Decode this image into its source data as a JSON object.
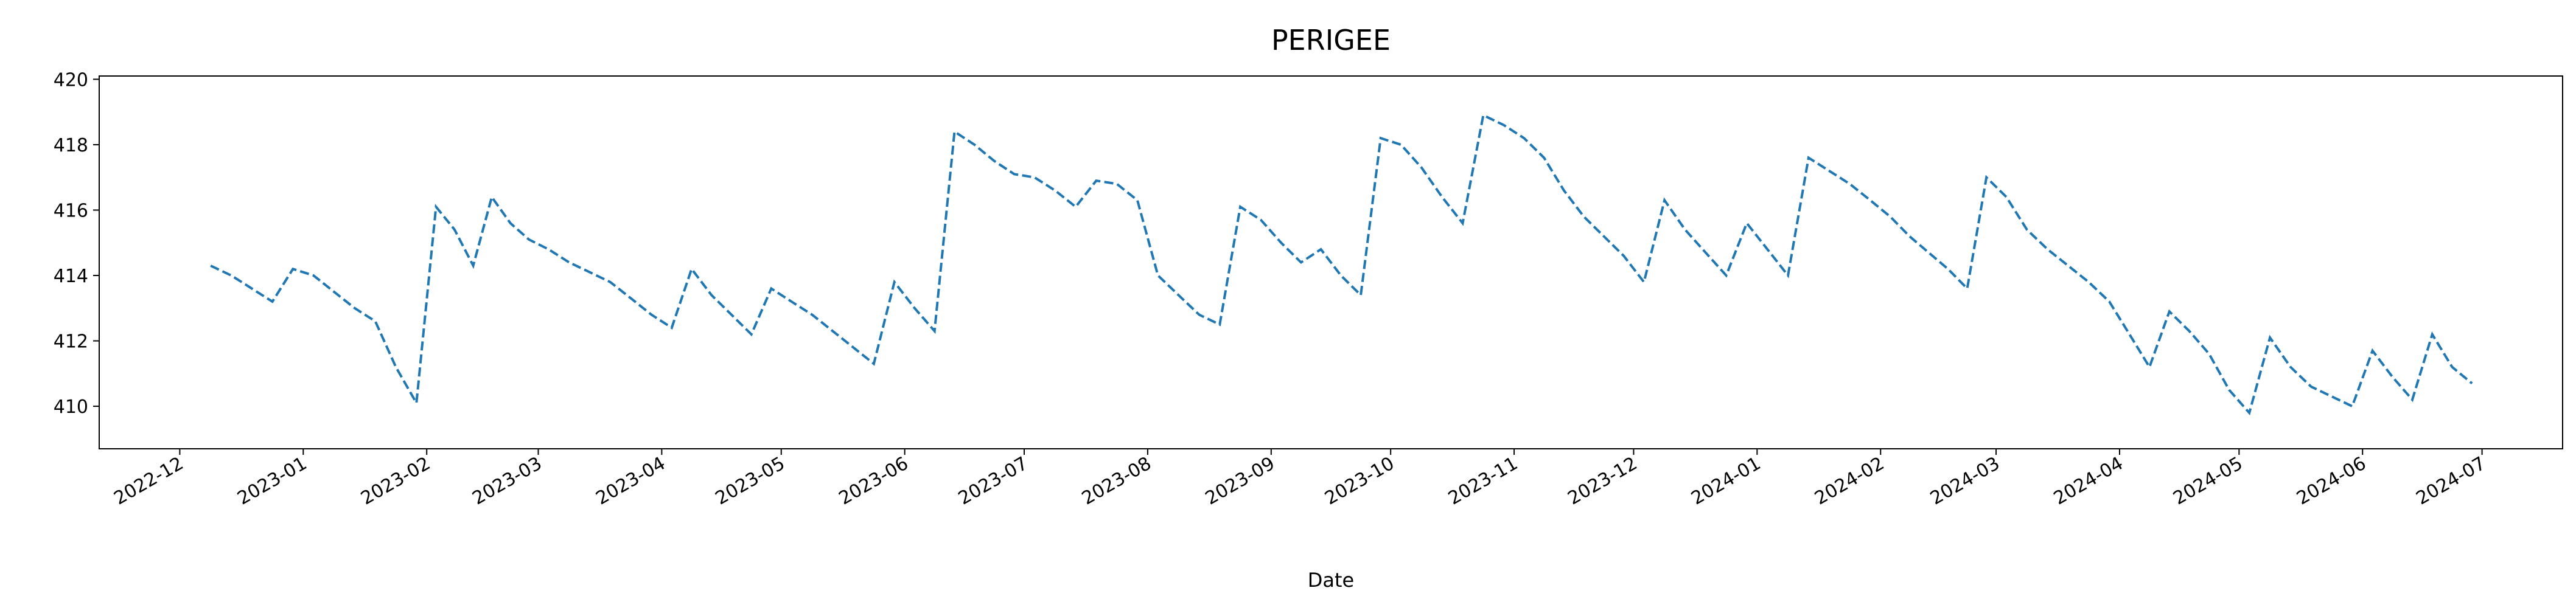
{
  "chart_data": {
    "type": "line",
    "title": "PERIGEE",
    "xlabel": "Date",
    "x": [
      "2022-12",
      "2022-12",
      "2022-12",
      "2022-12",
      "2022-12",
      "2022-12",
      "2023-01",
      "2023-01",
      "2023-01",
      "2023-01",
      "2023-01",
      "2023-01",
      "2023-02",
      "2023-02",
      "2023-02",
      "2023-02",
      "2023-02",
      "2023-02",
      "2023-03",
      "2023-03",
      "2023-03",
      "2023-03",
      "2023-03",
      "2023-03",
      "2023-04",
      "2023-04",
      "2023-04",
      "2023-04",
      "2023-04",
      "2023-04",
      "2023-05",
      "2023-05",
      "2023-05",
      "2023-05",
      "2023-05",
      "2023-05",
      "2023-06",
      "2023-06",
      "2023-06",
      "2023-06",
      "2023-06",
      "2023-06",
      "2023-07",
      "2023-07",
      "2023-07",
      "2023-07",
      "2023-07",
      "2023-07",
      "2023-08",
      "2023-08",
      "2023-08",
      "2023-08",
      "2023-08",
      "2023-08",
      "2023-09",
      "2023-09",
      "2023-09",
      "2023-09",
      "2023-09",
      "2023-09",
      "2023-10",
      "2023-10",
      "2023-10",
      "2023-10",
      "2023-10",
      "2023-10",
      "2023-11",
      "2023-11",
      "2023-11",
      "2023-11",
      "2023-11",
      "2023-11",
      "2023-12",
      "2023-12",
      "2023-12",
      "2023-12",
      "2023-12",
      "2023-12",
      "2024-01",
      "2024-01",
      "2024-01",
      "2024-01",
      "2024-01",
      "2024-01",
      "2024-02",
      "2024-02",
      "2024-02",
      "2024-02",
      "2024-02",
      "2024-02",
      "2024-03",
      "2024-03",
      "2024-03",
      "2024-03",
      "2024-03",
      "2024-03",
      "2024-04",
      "2024-04",
      "2024-04",
      "2024-04",
      "2024-04",
      "2024-04",
      "2024-05",
      "2024-05",
      "2024-05",
      "2024-05",
      "2024-05",
      "2024-05",
      "2024-06",
      "2024-06",
      "2024-06",
      "2024-06",
      "2024-06",
      "2024-06"
    ],
    "series": [
      {
        "color": "#1f77b4",
        "values": [
          null,
          414.3,
          414.0,
          413.6,
          413.2,
          414.2,
          414.0,
          413.5,
          413.0,
          412.6,
          411.2,
          410.1,
          416.1,
          415.4,
          414.3,
          416.4,
          415.6,
          415.1,
          414.8,
          414.4,
          414.1,
          413.8,
          413.3,
          412.8,
          412.4,
          414.2,
          413.4,
          412.8,
          412.2,
          413.6,
          413.2,
          412.8,
          412.3,
          411.8,
          411.3,
          413.8,
          413.0,
          412.3,
          418.4,
          418.0,
          417.5,
          417.1,
          417.0,
          416.6,
          416.1,
          416.9,
          416.8,
          416.3,
          414.0,
          413.4,
          412.8,
          412.5,
          416.1,
          415.7,
          415.0,
          414.4,
          414.8,
          414.0,
          413.4,
          418.2,
          418.0,
          417.3,
          416.4,
          415.6,
          418.9,
          418.6,
          418.2,
          417.6,
          416.6,
          415.8,
          415.2,
          414.6,
          413.8,
          416.3,
          415.4,
          414.7,
          414.0,
          415.6,
          414.8,
          414.0,
          417.6,
          417.2,
          416.8,
          416.3,
          415.8,
          415.2,
          414.7,
          414.2,
          413.6,
          417.0,
          416.4,
          415.4,
          414.8,
          414.3,
          413.8,
          413.2,
          412.2,
          411.2,
          412.9,
          412.3,
          411.6,
          410.5,
          409.8,
          412.1,
          411.2,
          410.6,
          410.3,
          410.0,
          411.7,
          410.9,
          410.2,
          412.2,
          411.2,
          410.7
        ]
      }
    ],
    "xticks": [
      "2022-12",
      "2023-01",
      "2023-02",
      "2023-03",
      "2023-04",
      "2023-05",
      "2023-06",
      "2023-07",
      "2023-08",
      "2023-09",
      "2023-10",
      "2023-11",
      "2023-12",
      "2024-01",
      "2024-02",
      "2024-03",
      "2024-04",
      "2024-05",
      "2024-06",
      "2024-07"
    ],
    "ylim": [
      408.7,
      420.1
    ],
    "yticks": [
      410,
      412,
      414,
      416,
      418,
      420
    ],
    "line_style": "dashed",
    "grid": false
  }
}
